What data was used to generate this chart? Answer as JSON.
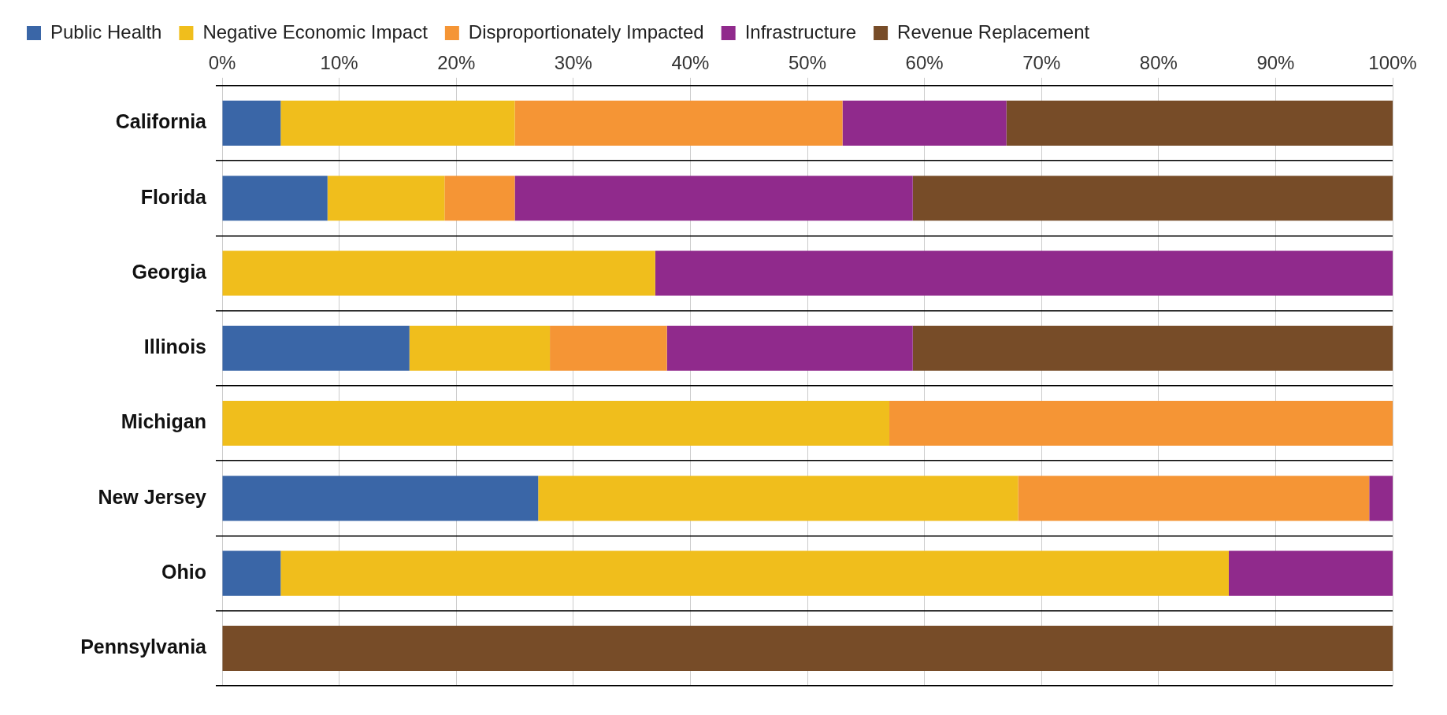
{
  "chart_data": {
    "type": "bar",
    "orientation": "horizontal",
    "stacked": true,
    "categories": [
      "California",
      "Florida",
      "Georgia",
      "Illinois",
      "Michigan",
      "New Jersey",
      "Ohio",
      "Pennsylvania"
    ],
    "series": [
      {
        "name": "Public Health",
        "color": "#3a66a7",
        "values": [
          5,
          9,
          0,
          16,
          0,
          27,
          5,
          0
        ]
      },
      {
        "name": "Negative Economic Impact",
        "color": "#f0be1c",
        "values": [
          20,
          10,
          37,
          12,
          57,
          41,
          81,
          0
        ]
      },
      {
        "name": "Disproportionately Impacted",
        "color": "#f59535",
        "values": [
          28,
          6,
          0,
          10,
          43,
          30,
          0,
          0
        ]
      },
      {
        "name": "Infrastructure",
        "color": "#902a8c",
        "values": [
          14,
          34,
          63,
          21,
          0,
          2,
          14,
          0
        ]
      },
      {
        "name": "Revenue Replacement",
        "color": "#774c28",
        "values": [
          33,
          41,
          0,
          41,
          0,
          0,
          0,
          100
        ]
      }
    ],
    "xlim": [
      0,
      100
    ],
    "xticks": [
      {
        "value": 0,
        "label": "0%"
      },
      {
        "value": 10,
        "label": "10%"
      },
      {
        "value": 20,
        "label": "20%"
      },
      {
        "value": 30,
        "label": "30%"
      },
      {
        "value": 40,
        "label": "40%"
      },
      {
        "value": 50,
        "label": "50%"
      },
      {
        "value": 60,
        "label": "60%"
      },
      {
        "value": 70,
        "label": "70%"
      },
      {
        "value": 80,
        "label": "80%"
      },
      {
        "value": 90,
        "label": "90%"
      },
      {
        "value": 100,
        "label": "100%"
      }
    ],
    "grid": true,
    "legend": "top"
  }
}
